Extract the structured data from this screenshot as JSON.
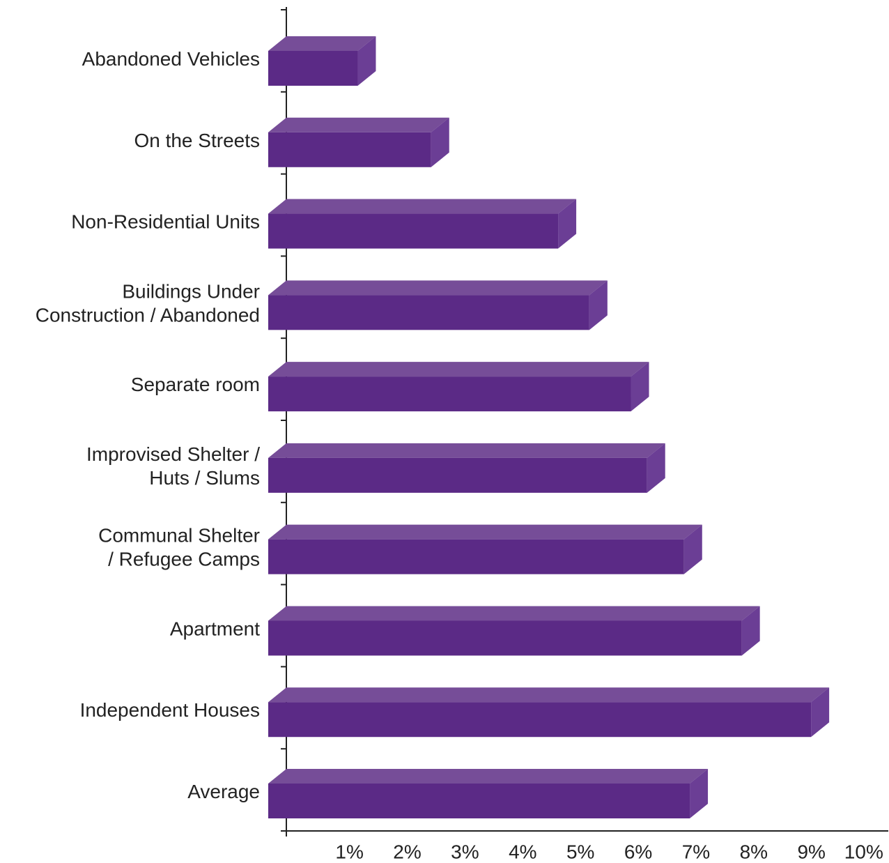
{
  "chart_data": {
    "type": "bar3d_horizontal",
    "categories": [
      [
        "Abandoned Vehicles"
      ],
      [
        "On the Streets"
      ],
      [
        "Non-Residential Units"
      ],
      [
        "Buildings Under",
        "Construction / Abandoned"
      ],
      [
        "Separate room"
      ],
      [
        "Improvised Shelter /",
        "Huts / Slums"
      ],
      [
        "Communal Shelter",
        "/ Refugee Camps"
      ],
      [
        "Apartment"
      ],
      [
        "Independent Houses"
      ],
      [
        "Average"
      ]
    ],
    "values": [
      1.55,
      2.82,
      5.02,
      5.56,
      6.28,
      6.56,
      7.2,
      8.2,
      9.4,
      7.3
    ],
    "color": "#5b2a86",
    "xlim": [
      0,
      10.4
    ],
    "xticks": [
      {
        "value": 1,
        "label": "1%"
      },
      {
        "value": 2,
        "label": "2%"
      },
      {
        "value": 3,
        "label": "3%"
      },
      {
        "value": 4,
        "label": "4%"
      },
      {
        "value": 5,
        "label": "5%"
      },
      {
        "value": 6,
        "label": "6%"
      },
      {
        "value": 7,
        "label": "7%"
      },
      {
        "value": 8,
        "label": "8%"
      },
      {
        "value": 9,
        "label": "9%"
      },
      {
        "value": 10,
        "label": "10%"
      }
    ],
    "grid": false
  }
}
